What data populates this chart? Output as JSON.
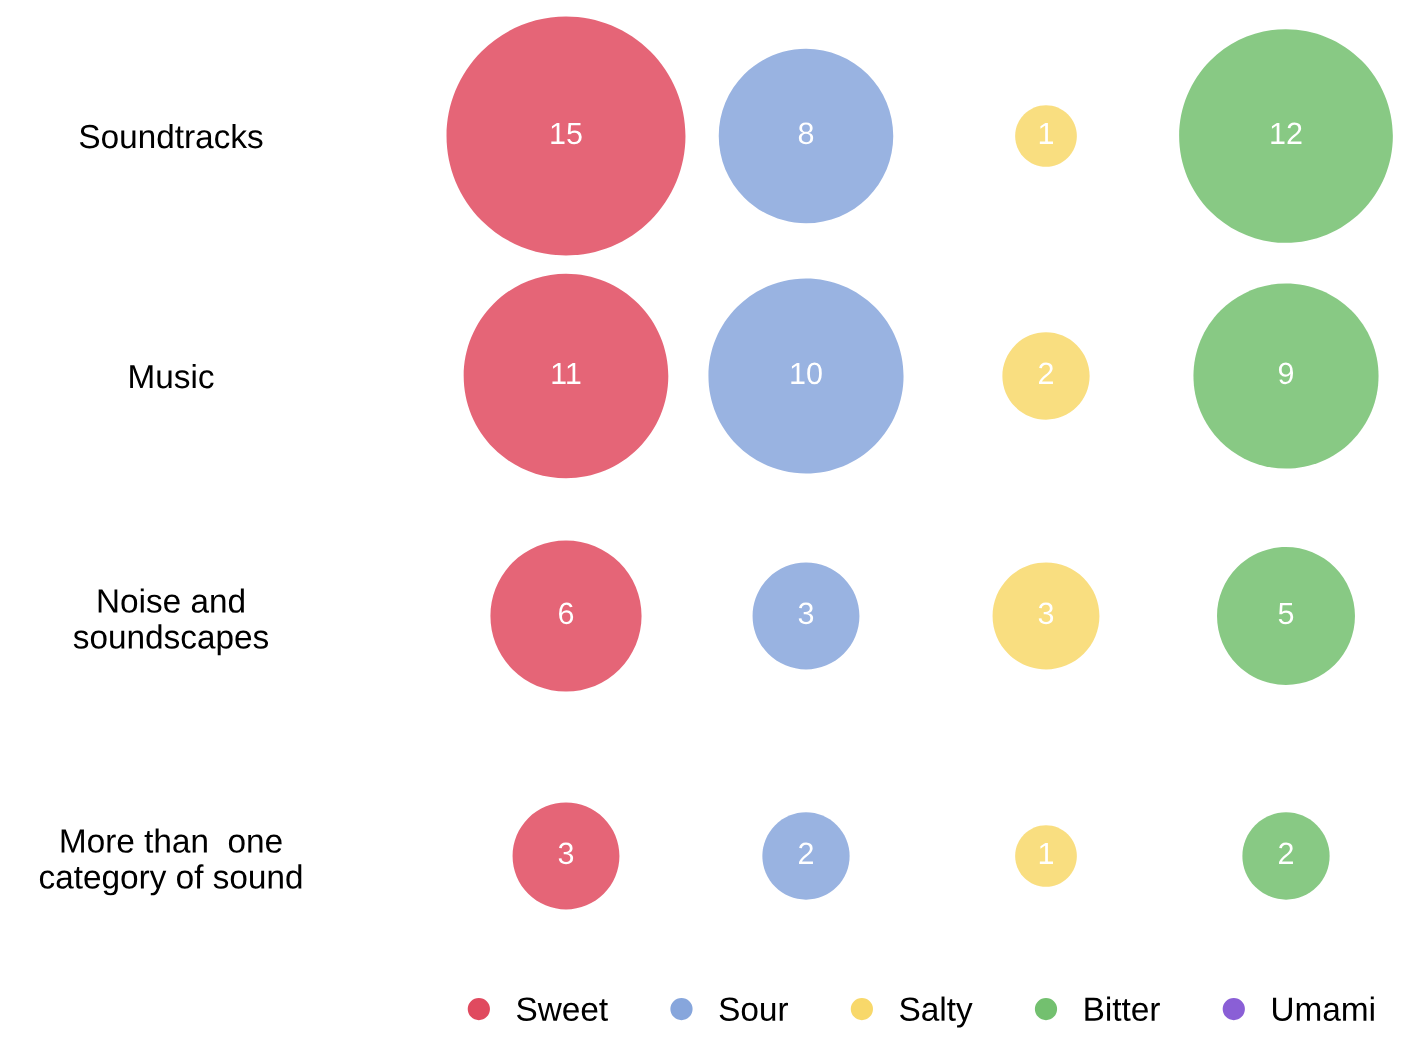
{
  "chart_data": {
    "type": "other",
    "categories": [
      "Soundtracks",
      "Music",
      "Noise and\nsoundscapes",
      "More than  one\ncategory of sound"
    ],
    "series": [
      {
        "name": "Sweet",
        "color": "#e04a5f",
        "values": [
          15,
          11,
          6,
          3
        ]
      },
      {
        "name": "Sour",
        "color": "#87a6dc",
        "values": [
          8,
          10,
          3,
          2
        ]
      },
      {
        "name": "Salty",
        "color": "#f8d86a",
        "values": [
          1,
          2,
          3,
          1
        ]
      },
      {
        "name": "Bitter",
        "color": "#73c06f",
        "values": [
          12,
          9,
          5,
          2
        ]
      },
      {
        "name": "Umami",
        "color": "#8a5fd6",
        "values": [
          null,
          null,
          null,
          null
        ]
      }
    ],
    "data_labels": true,
    "legend": "bottom"
  }
}
